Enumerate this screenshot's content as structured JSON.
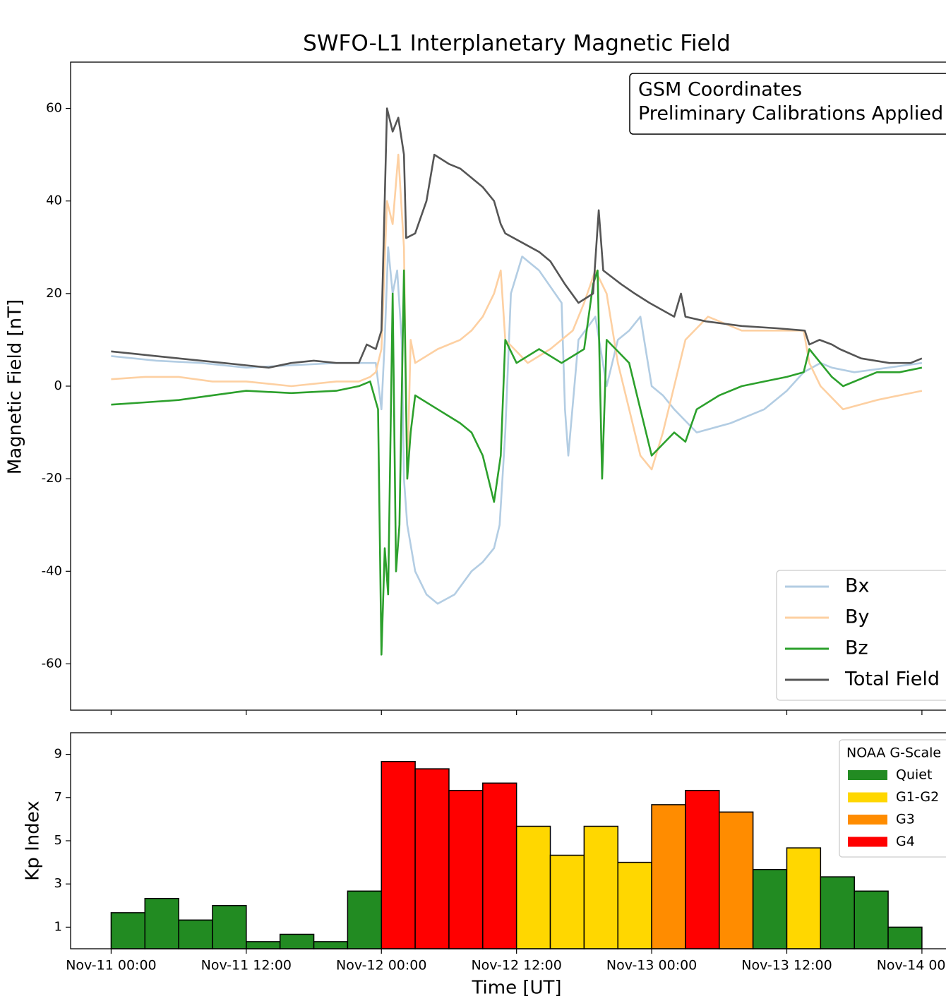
{
  "chart_data": [
    {
      "type": "line",
      "title": "SWFO-L1 Interplanetary Magnetic Field",
      "ylabel": "Magnetic Field [nT]",
      "annotation": [
        "GSM Coordinates",
        "Preliminary Calibrations Applied"
      ],
      "xlim": [
        -3.6,
        74.2
      ],
      "xticks": [
        0,
        12,
        24,
        36,
        48,
        60,
        72
      ],
      "ylim": [
        -70,
        70
      ],
      "yticks": [
        -60,
        -40,
        -20,
        0,
        20,
        40,
        60
      ],
      "legend": "lower right",
      "series": [
        {
          "name": "Bx",
          "color": "#b3cde3",
          "x": [
            0,
            4,
            8,
            12,
            16,
            20,
            22,
            23,
            23.5,
            24,
            24.3,
            24.6,
            25,
            25.4,
            25.8,
            26,
            26.3,
            27,
            28,
            29,
            30.5,
            32,
            33,
            34,
            34.5,
            35,
            35.5,
            36.5,
            38,
            40,
            40.3,
            40.6,
            41.5,
            43,
            44,
            45,
            46,
            47,
            48,
            49,
            50,
            52,
            55,
            58,
            60,
            61.5,
            63,
            64,
            66,
            69,
            72
          ],
          "values": [
            6.5,
            5.5,
            5,
            4,
            4.5,
            5,
            5,
            5,
            5,
            -5,
            10,
            30,
            20,
            25,
            10,
            -20,
            -30,
            -40,
            -45,
            -47,
            -45,
            -40,
            -38,
            -35,
            -30,
            -10,
            20,
            28,
            25,
            18,
            -5,
            -15,
            10,
            15,
            0,
            10,
            12,
            15,
            0,
            -2,
            -5,
            -10,
            -8,
            -5,
            -1,
            3,
            5,
            4,
            3,
            4,
            5
          ]
        },
        {
          "name": "By",
          "color": "#fdd0a2",
          "x": [
            0,
            3,
            6,
            9,
            12,
            16,
            20,
            22,
            23,
            23.5,
            24,
            24.5,
            25,
            25.5,
            26,
            26.3,
            26.6,
            27,
            29,
            31,
            32,
            33,
            34,
            34.6,
            35,
            37,
            39,
            41,
            42,
            43,
            44,
            45,
            46,
            47,
            48,
            49,
            50,
            51,
            53,
            56,
            60,
            61.5,
            62,
            63,
            65,
            68,
            70,
            72
          ],
          "values": [
            1.5,
            2,
            2,
            1,
            1,
            0,
            1,
            1,
            2,
            3,
            8,
            40,
            35,
            50,
            30,
            -20,
            10,
            5,
            8,
            10,
            12,
            15,
            20,
            25,
            10,
            5,
            8,
            12,
            18,
            25,
            20,
            5,
            -5,
            -15,
            -18,
            -10,
            0,
            10,
            15,
            12,
            12,
            12,
            5,
            0,
            -5,
            -3,
            -2,
            -1
          ]
        },
        {
          "name": "Bz",
          "color": "#2ca02c",
          "x": [
            0,
            3,
            6,
            9,
            12,
            16,
            20,
            22,
            23,
            23.7,
            24,
            24.3,
            24.6,
            25,
            25.3,
            25.6,
            26,
            26.3,
            26.6,
            27,
            29,
            31,
            32,
            33,
            34,
            34.6,
            35,
            36,
            38,
            40,
            42,
            42.8,
            43.2,
            43.6,
            44,
            46,
            47,
            48,
            50,
            51,
            52,
            54,
            56,
            58,
            60,
            61.5,
            62,
            63,
            64,
            65,
            68,
            70,
            72
          ],
          "values": [
            -4,
            -3.5,
            -3,
            -2,
            -1,
            -1.5,
            -1,
            0,
            1,
            -5,
            -58,
            -35,
            -45,
            20,
            -40,
            -30,
            25,
            -20,
            -10,
            -2,
            -5,
            -8,
            -10,
            -15,
            -25,
            -15,
            10,
            5,
            8,
            5,
            8,
            22,
            25,
            -20,
            10,
            5,
            -5,
            -15,
            -10,
            -12,
            -5,
            -2,
            0,
            1,
            2,
            3,
            8,
            5,
            2,
            0,
            3,
            3,
            4
          ]
        },
        {
          "name": "Total Field",
          "color": "#555555",
          "x": [
            0,
            2,
            4,
            6,
            8,
            10,
            12,
            14,
            16,
            18,
            20,
            22,
            22.7,
            23.5,
            24,
            24.5,
            25,
            25.5,
            26,
            26.2,
            27,
            28,
            28.7,
            30,
            31,
            32,
            33,
            34,
            34.6,
            35,
            36.5,
            38,
            39,
            40.3,
            41.5,
            42.8,
            43.3,
            43.7,
            45.3,
            46.5,
            47.8,
            50,
            50.6,
            51,
            52.8,
            56,
            59.1,
            61.6,
            62,
            62.9,
            64,
            64.7,
            66.6,
            69.1,
            71,
            72
          ],
          "values": [
            7.5,
            7,
            6.5,
            6,
            5.5,
            5,
            4.5,
            4,
            5,
            5.5,
            5,
            5,
            9,
            8,
            12,
            60,
            55,
            58,
            50,
            32,
            33,
            40,
            50,
            48,
            47,
            45,
            43,
            40,
            35,
            33,
            31,
            29,
            27,
            22,
            18,
            20,
            38,
            25,
            22,
            20,
            18,
            15,
            20,
            15,
            14,
            13,
            12.5,
            12,
            9,
            10,
            9,
            8,
            6,
            5,
            5,
            6
          ]
        }
      ]
    },
    {
      "type": "histogram",
      "ylabel": "Kp Index",
      "xlabel": "Time [UT]",
      "xlim": [
        -3.6,
        74.2
      ],
      "xticks": [
        {
          "value": 0,
          "label": "Nov-11 00:00"
        },
        {
          "value": 12,
          "label": "Nov-11 12:00"
        },
        {
          "value": 24,
          "label": "Nov-12 00:00"
        },
        {
          "value": 36,
          "label": "Nov-12 12:00"
        },
        {
          "value": 48,
          "label": "Nov-13 00:00"
        },
        {
          "value": 60,
          "label": "Nov-13 12:00"
        },
        {
          "value": 72,
          "label": "Nov-14 00:00"
        }
      ],
      "ylim": [
        0,
        10
      ],
      "yticks": [
        1,
        3,
        5,
        7,
        9
      ],
      "bins": [
        0,
        3,
        6,
        9,
        12,
        15,
        18,
        21,
        24,
        27,
        30,
        33,
        36,
        39,
        42,
        45,
        48,
        51,
        54,
        57,
        60,
        63,
        66,
        69,
        72
      ],
      "values": [
        1.67,
        2.33,
        1.33,
        2.0,
        0.33,
        0.67,
        0.33,
        2.67,
        8.67,
        8.33,
        7.33,
        7.67,
        5.67,
        4.33,
        5.67,
        4.0,
        6.67,
        7.33,
        6.33,
        3.67,
        4.67,
        3.33,
        2.67,
        1.0
      ],
      "colors": [
        "#228b22",
        "#228b22",
        "#228b22",
        "#228b22",
        "#228b22",
        "#228b22",
        "#228b22",
        "#228b22",
        "#ff0000",
        "#ff0000",
        "#ff0000",
        "#ff0000",
        "#ffd700",
        "#ffd700",
        "#ffd700",
        "#ffd700",
        "#ff8c00",
        "#ff0000",
        "#ff8c00",
        "#228b22",
        "#ffd700",
        "#228b22",
        "#228b22",
        "#228b22"
      ],
      "legend_title": "NOAA G-Scale",
      "legend": [
        {
          "name": "Quiet",
          "color": "#228b22"
        },
        {
          "name": "G1-G2",
          "color": "#ffd700"
        },
        {
          "name": "G3",
          "color": "#ff8c00"
        },
        {
          "name": "G4",
          "color": "#ff0000"
        }
      ]
    }
  ]
}
